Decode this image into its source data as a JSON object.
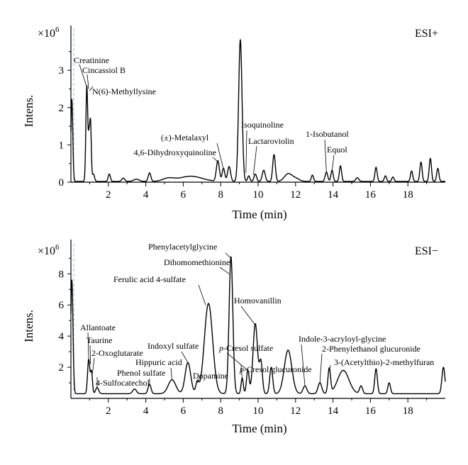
{
  "chart_data": [
    {
      "type": "line",
      "mode_label": "ESI+",
      "xlabel": "Time (min)",
      "ylabel": "Intens.",
      "y_exponent_label": "×10",
      "y_exponent_power": "6",
      "xlim": [
        0,
        20
      ],
      "ylim": [
        0,
        4.2
      ],
      "x_ticks": [
        2,
        4,
        6,
        8,
        10,
        12,
        14,
        16,
        18
      ],
      "x_tick_labels": [
        "2",
        "4",
        "6",
        "8",
        "10",
        "12",
        "14",
        "16",
        "18"
      ],
      "y_ticks": [
        0,
        1,
        2,
        3
      ],
      "y_tick_labels": [
        "0",
        "1",
        "2",
        "3"
      ],
      "baseline": 0.02,
      "peaks": [
        {
          "t": 0.05,
          "h": 2.2,
          "w": 0.05
        },
        {
          "t": 0.85,
          "h": 2.55,
          "w": 0.05
        },
        {
          "t": 0.97,
          "h": 1.1,
          "w": 0.04
        },
        {
          "t": 1.05,
          "h": 1.5,
          "w": 0.04
        },
        {
          "t": 1.2,
          "h": 0.2,
          "w": 0.06
        },
        {
          "t": 2.05,
          "h": 0.2,
          "w": 0.06
        },
        {
          "t": 2.8,
          "h": 0.09,
          "w": 0.08
        },
        {
          "t": 3.5,
          "h": 0.06,
          "w": 0.15
        },
        {
          "t": 4.2,
          "h": 0.23,
          "w": 0.07
        },
        {
          "t": 5.2,
          "h": 0.08,
          "w": 0.3
        },
        {
          "t": 6.4,
          "h": 0.14,
          "w": 0.6
        },
        {
          "t": 7.85,
          "h": 0.55,
          "w": 0.08
        },
        {
          "t": 8.15,
          "h": 0.35,
          "w": 0.07
        },
        {
          "t": 8.45,
          "h": 0.4,
          "w": 0.08
        },
        {
          "t": 9.05,
          "h": 3.8,
          "w": 0.09
        },
        {
          "t": 9.5,
          "h": 0.15,
          "w": 0.06
        },
        {
          "t": 9.85,
          "h": 0.2,
          "w": 0.07
        },
        {
          "t": 10.3,
          "h": 0.3,
          "w": 0.08
        },
        {
          "t": 10.85,
          "h": 0.72,
          "w": 0.07
        },
        {
          "t": 11.6,
          "h": 0.2,
          "w": 0.2
        },
        {
          "t": 12.0,
          "h": 0.08,
          "w": 0.2
        },
        {
          "t": 12.9,
          "h": 0.17,
          "w": 0.06
        },
        {
          "t": 13.65,
          "h": 0.25,
          "w": 0.07
        },
        {
          "t": 13.95,
          "h": 0.3,
          "w": 0.06
        },
        {
          "t": 14.4,
          "h": 0.42,
          "w": 0.06
        },
        {
          "t": 15.3,
          "h": 0.1,
          "w": 0.08
        },
        {
          "t": 16.3,
          "h": 0.38,
          "w": 0.06
        },
        {
          "t": 16.8,
          "h": 0.15,
          "w": 0.06
        },
        {
          "t": 17.2,
          "h": 0.12,
          "w": 0.06
        },
        {
          "t": 18.2,
          "h": 0.28,
          "w": 0.06
        },
        {
          "t": 18.7,
          "h": 0.52,
          "w": 0.06
        },
        {
          "t": 19.2,
          "h": 0.62,
          "w": 0.06
        },
        {
          "t": 19.6,
          "h": 0.35,
          "w": 0.06
        }
      ],
      "annotations": [
        {
          "text": "Creatinine",
          "t": 0.85,
          "y": 2.55
        },
        {
          "text": "Cincassiol B",
          "t": 0.95,
          "y": 2.5
        },
        {
          "text": "N(6)-Methyllysine",
          "t": 1.0,
          "y": 2.45
        },
        {
          "text": "4,6-Dihydroxyquinoline",
          "t": 7.85,
          "y": 0.55
        },
        {
          "text": "(±)-Metalaxyl",
          "t": 8.15,
          "y": 0.35
        },
        {
          "text": "Isoquinoline",
          "t": 9.35,
          "y": 0.25
        },
        {
          "text": "Lactaroviolin",
          "t": 9.75,
          "y": 0.2
        },
        {
          "text": "1-Isobutanol",
          "t": 13.65,
          "y": 0.25
        },
        {
          "text": "Equol",
          "t": 13.95,
          "y": 0.3
        }
      ]
    },
    {
      "type": "line",
      "mode_label": "ESI−",
      "xlabel": "Time (min)",
      "ylabel": "Intens.",
      "y_exponent_label": "×10",
      "y_exponent_power": "6",
      "xlim": [
        0,
        20
      ],
      "ylim": [
        0,
        10.2
      ],
      "x_ticks": [
        2,
        4,
        6,
        8,
        10,
        12,
        14,
        16,
        18
      ],
      "x_tick_labels": [
        "2",
        "4",
        "6",
        "8",
        "10",
        "12",
        "14",
        "16",
        "18"
      ],
      "y_ticks": [
        2,
        4,
        6,
        8
      ],
      "y_tick_labels": [
        "2",
        "4",
        "6",
        "8"
      ],
      "baseline": 0.3,
      "peaks": [
        {
          "t": 0.05,
          "h": 7.3,
          "w": 0.06
        },
        {
          "t": 0.95,
          "h": 2.2,
          "w": 0.06
        },
        {
          "t": 1.1,
          "h": 1.4,
          "w": 0.05
        },
        {
          "t": 1.4,
          "h": 0.4,
          "w": 0.08
        },
        {
          "t": 3.4,
          "h": 0.3,
          "w": 0.1
        },
        {
          "t": 4.2,
          "h": 0.6,
          "w": 0.08
        },
        {
          "t": 5.4,
          "h": 0.9,
          "w": 0.2
        },
        {
          "t": 6.25,
          "h": 2.0,
          "w": 0.15
        },
        {
          "t": 6.75,
          "h": 0.7,
          "w": 0.08
        },
        {
          "t": 7.35,
          "h": 5.8,
          "w": 0.22
        },
        {
          "t": 8.55,
          "h": 8.8,
          "w": 0.1
        },
        {
          "t": 9.15,
          "h": 1.0,
          "w": 0.06
        },
        {
          "t": 9.45,
          "h": 1.5,
          "w": 0.07
        },
        {
          "t": 9.85,
          "h": 4.5,
          "w": 0.12
        },
        {
          "t": 10.15,
          "h": 2.0,
          "w": 0.08
        },
        {
          "t": 10.7,
          "h": 1.7,
          "w": 0.08
        },
        {
          "t": 11.6,
          "h": 2.8,
          "w": 0.2
        },
        {
          "t": 12.5,
          "h": 0.5,
          "w": 0.1
        },
        {
          "t": 13.3,
          "h": 0.7,
          "w": 0.1
        },
        {
          "t": 13.8,
          "h": 1.6,
          "w": 0.07
        },
        {
          "t": 14.55,
          "h": 1.5,
          "w": 0.3
        },
        {
          "t": 15.5,
          "h": 0.5,
          "w": 0.08
        },
        {
          "t": 16.3,
          "h": 1.6,
          "w": 0.07
        },
        {
          "t": 17.0,
          "h": 0.7,
          "w": 0.07
        },
        {
          "t": 19.9,
          "h": 1.7,
          "w": 0.08
        }
      ],
      "annotations": [
        {
          "text": "Allantoate",
          "t": 0.95,
          "y": 2.5
        },
        {
          "text": "Taurine",
          "t": 1.05,
          "y": 2.2
        },
        {
          "text": "2-Oxoglutarate",
          "t": 1.15,
          "y": 1.6
        },
        {
          "text": "4-Sulfocatechol",
          "t": 1.4,
          "y": 0.7
        },
        {
          "text": "Phenol sulfate",
          "t": 4.2,
          "y": 0.9
        },
        {
          "text": "Hippuric acid",
          "t": 5.4,
          "y": 1.2
        },
        {
          "text": "Indoxyl sulfate",
          "t": 6.25,
          "y": 2.3
        },
        {
          "text": "Dopamine",
          "t": 6.75,
          "y": 1.0
        },
        {
          "text": "Ferulic acid 4-sulfate",
          "t": 7.2,
          "y": 6.0
        },
        {
          "text": "Dihomomethionine",
          "t": 8.45,
          "y": 8.0
        },
        {
          "text": "Phenylacetylglycine",
          "t": 8.55,
          "y": 9.0
        },
        {
          "text": "Homovanillin",
          "t": 9.85,
          "y": 4.7
        },
        {
          "text": "p-Cresol sulfate",
          "t": 9.45,
          "y": 1.8
        },
        {
          "text": "p-Cresol glucuronide",
          "t": 9.15,
          "y": 1.2
        },
        {
          "text": "Indole-3-acryloyl-glycine",
          "t": 12.5,
          "y": 0.8
        },
        {
          "text": "2-Phenylethanol glucuronide",
          "t": 13.3,
          "y": 1.0
        },
        {
          "text": "3-(Acetylthio)-2-methylfuran",
          "t": 13.8,
          "y": 1.8
        }
      ]
    }
  ]
}
